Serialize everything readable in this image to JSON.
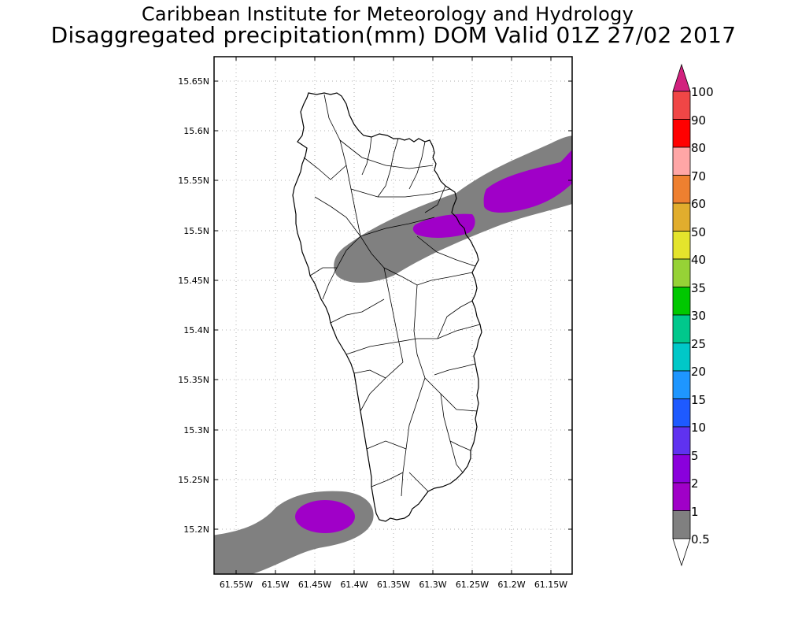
{
  "title": {
    "line1": "Caribbean Institute for Meteorology and Hydrology",
    "line2": "Disaggregated precipitation(mm) DOM Valid 01Z 27/02 2017"
  },
  "axes": {
    "lat_ticks": [
      "15.65N",
      "15.6N",
      "15.55N",
      "15.5N",
      "15.45N",
      "15.4N",
      "15.35N",
      "15.3N",
      "15.25N",
      "15.2N"
    ],
    "lon_ticks": [
      "61.55W",
      "61.5W",
      "61.45W",
      "61.4W",
      "61.35W",
      "61.3W",
      "61.25W",
      "61.2W",
      "61.15W"
    ]
  },
  "colorbar": {
    "labels": [
      "100",
      "90",
      "80",
      "70",
      "60",
      "50",
      "40",
      "35",
      "30",
      "25",
      "20",
      "15",
      "10",
      "5",
      "2",
      "1",
      "0.5"
    ],
    "colors": [
      "#d2217e",
      "#f04646",
      "#ff0000",
      "#ffa6a6",
      "#ee8030",
      "#e1ad2d",
      "#e4e42c",
      "#96d236",
      "#00c800",
      "#00c88c",
      "#00c8c8",
      "#1e96ff",
      "#1e5aff",
      "#5f32f0",
      "#8a00dc",
      "#a000c8",
      "#808080",
      "#ffffff"
    ]
  },
  "precip_areas": [
    {
      "label": "0.5-1 mm band (north-east)",
      "color": "#808080"
    },
    {
      "label": "1-2 mm core (north-east)",
      "color": "#a000c8"
    },
    {
      "label": "0.5-1 mm band (south-west)",
      "color": "#808080"
    },
    {
      "label": "1-2 mm core (south-west)",
      "color": "#a000c8"
    }
  ]
}
